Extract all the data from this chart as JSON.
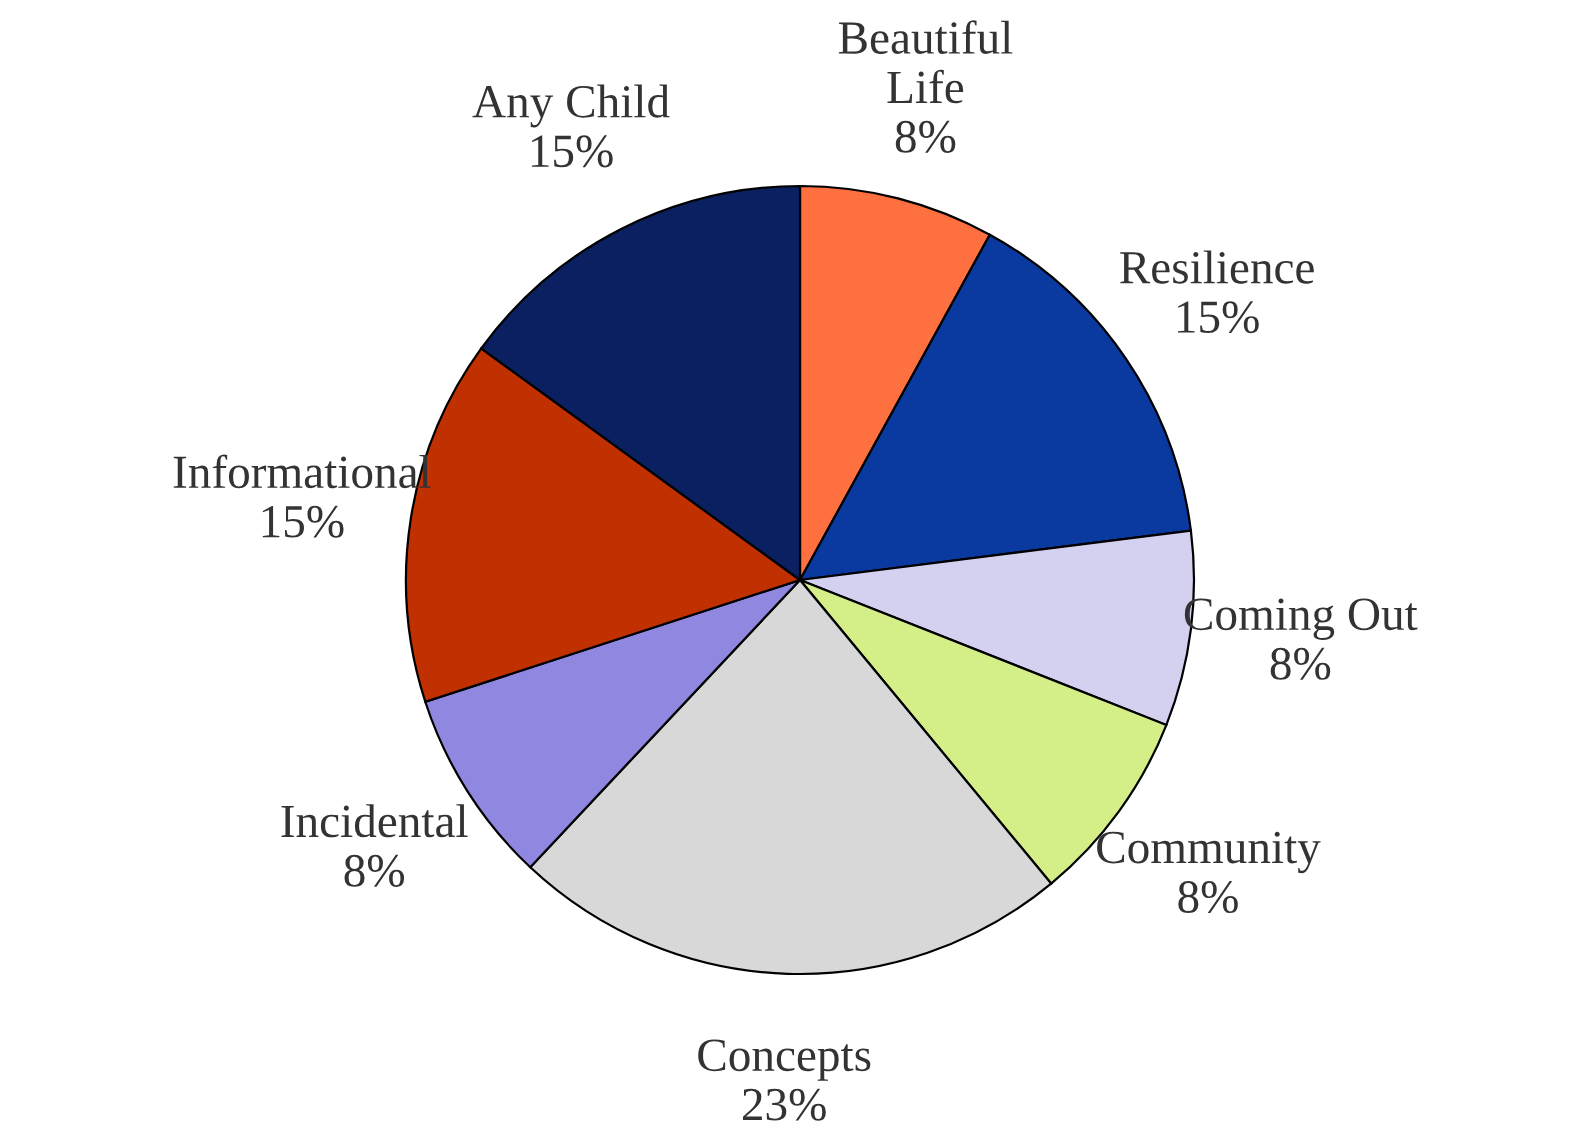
{
  "chart_data": {
    "type": "pie",
    "categories": [
      "Beautiful Life",
      "Resilience",
      "Coming Out",
      "Community",
      "Concepts",
      "Incidental",
      "Informational",
      "Any Child"
    ],
    "values": [
      8,
      15,
      8,
      8,
      23,
      8,
      15,
      15
    ],
    "value_labels": [
      "8%",
      "15%",
      "8%",
      "8%",
      "23%",
      "8%",
      "15%",
      "15%"
    ],
    "colors": [
      "#ff7040",
      "#0a3aa0",
      "#d4d0f0",
      "#d4ee88",
      "#d8d8d8",
      "#9088e0",
      "#c03000",
      "#0a2060"
    ],
    "legend": false
  }
}
